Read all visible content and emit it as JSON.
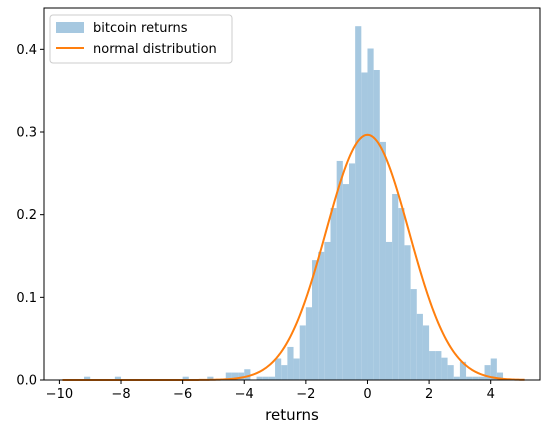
{
  "chart_data": {
    "type": "bar",
    "title": "",
    "xlabel": "returns",
    "ylabel": "",
    "xlim": [
      -10.5,
      5.6
    ],
    "ylim": [
      0,
      0.45
    ],
    "x_ticks": [
      -10,
      -8,
      -6,
      -4,
      -2,
      0,
      2,
      4
    ],
    "y_ticks": [
      0.0,
      0.1,
      0.2,
      0.3,
      0.4
    ],
    "legend_position": "top-left",
    "grid": false,
    "series": [
      {
        "name": "bitcoin returns",
        "kind": "histogram",
        "color": "#a6c8e0",
        "bin_width": 0.2,
        "bins": [
          {
            "x": -9.2,
            "value": 0.004
          },
          {
            "x": -8.2,
            "value": 0.004
          },
          {
            "x": -6.0,
            "value": 0.004
          },
          {
            "x": -5.2,
            "value": 0.004
          },
          {
            "x": -4.6,
            "value": 0.009
          },
          {
            "x": -4.4,
            "value": 0.009
          },
          {
            "x": -4.2,
            "value": 0.009
          },
          {
            "x": -4.0,
            "value": 0.013
          },
          {
            "x": -3.6,
            "value": 0.004
          },
          {
            "x": -3.4,
            "value": 0.004
          },
          {
            "x": -3.2,
            "value": 0.004
          },
          {
            "x": -3.0,
            "value": 0.026
          },
          {
            "x": -2.8,
            "value": 0.018
          },
          {
            "x": -2.6,
            "value": 0.04
          },
          {
            "x": -2.4,
            "value": 0.026
          },
          {
            "x": -2.2,
            "value": 0.066
          },
          {
            "x": -2.0,
            "value": 0.088
          },
          {
            "x": -1.8,
            "value": 0.145
          },
          {
            "x": -1.6,
            "value": 0.155
          },
          {
            "x": -1.4,
            "value": 0.167
          },
          {
            "x": -1.2,
            "value": 0.208
          },
          {
            "x": -1.0,
            "value": 0.265
          },
          {
            "x": -0.8,
            "value": 0.237
          },
          {
            "x": -0.6,
            "value": 0.262
          },
          {
            "x": -0.4,
            "value": 0.428
          },
          {
            "x": -0.2,
            "value": 0.372
          },
          {
            "x": 0.0,
            "value": 0.401
          },
          {
            "x": 0.2,
            "value": 0.375
          },
          {
            "x": 0.4,
            "value": 0.288
          },
          {
            "x": 0.6,
            "value": 0.167
          },
          {
            "x": 0.8,
            "value": 0.225
          },
          {
            "x": 1.0,
            "value": 0.208
          },
          {
            "x": 1.2,
            "value": 0.163
          },
          {
            "x": 1.4,
            "value": 0.11
          },
          {
            "x": 1.6,
            "value": 0.08
          },
          {
            "x": 1.8,
            "value": 0.066
          },
          {
            "x": 2.0,
            "value": 0.035
          },
          {
            "x": 2.2,
            "value": 0.035
          },
          {
            "x": 2.4,
            "value": 0.027
          },
          {
            "x": 2.6,
            "value": 0.018
          },
          {
            "x": 2.8,
            "value": 0.004
          },
          {
            "x": 3.0,
            "value": 0.022
          },
          {
            "x": 3.2,
            "value": 0.004
          },
          {
            "x": 3.4,
            "value": 0.004
          },
          {
            "x": 3.6,
            "value": 0.004
          },
          {
            "x": 3.8,
            "value": 0.018
          },
          {
            "x": 4.0,
            "value": 0.026
          },
          {
            "x": 4.2,
            "value": 0.009
          }
        ]
      },
      {
        "name": "normal distribution",
        "kind": "line",
        "color": "#ff7f0e",
        "mean": 0.0,
        "std": 1.345,
        "x_range": [
          -9.9,
          5.1
        ]
      }
    ]
  }
}
